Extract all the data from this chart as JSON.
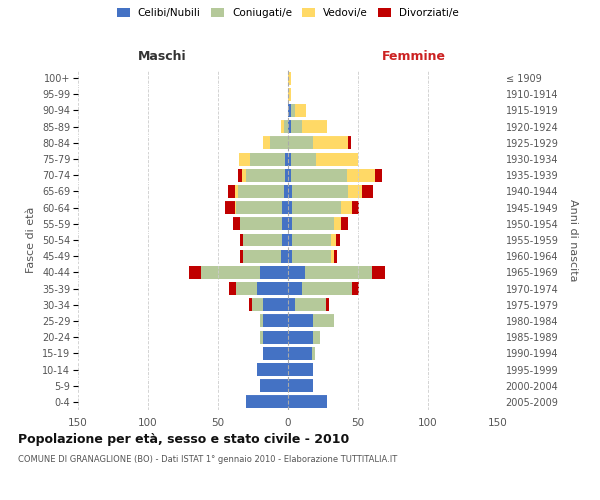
{
  "age_groups": [
    "0-4",
    "5-9",
    "10-14",
    "15-19",
    "20-24",
    "25-29",
    "30-34",
    "35-39",
    "40-44",
    "45-49",
    "50-54",
    "55-59",
    "60-64",
    "65-69",
    "70-74",
    "75-79",
    "80-84",
    "85-89",
    "90-94",
    "95-99",
    "100+"
  ],
  "birth_years": [
    "2005-2009",
    "2000-2004",
    "1995-1999",
    "1990-1994",
    "1985-1989",
    "1980-1984",
    "1975-1979",
    "1970-1974",
    "1965-1969",
    "1960-1964",
    "1955-1959",
    "1950-1954",
    "1945-1949",
    "1940-1944",
    "1935-1939",
    "1930-1934",
    "1925-1929",
    "1920-1924",
    "1915-1919",
    "1910-1914",
    "≤ 1909"
  ],
  "male_celibe": [
    30,
    20,
    22,
    18,
    18,
    18,
    18,
    22,
    20,
    5,
    4,
    4,
    4,
    3,
    2,
    2,
    0,
    0,
    0,
    0,
    0
  ],
  "male_coniugato": [
    0,
    0,
    0,
    0,
    2,
    2,
    8,
    15,
    42,
    27,
    28,
    30,
    33,
    33,
    28,
    25,
    13,
    3,
    0,
    0,
    0
  ],
  "male_vedovo": [
    0,
    0,
    0,
    0,
    0,
    0,
    0,
    0,
    0,
    0,
    0,
    0,
    1,
    2,
    3,
    8,
    5,
    2,
    0,
    0,
    0
  ],
  "male_divorziato": [
    0,
    0,
    0,
    0,
    0,
    0,
    2,
    5,
    9,
    2,
    2,
    5,
    7,
    5,
    3,
    0,
    0,
    0,
    0,
    0,
    0
  ],
  "female_nubile": [
    28,
    18,
    18,
    17,
    18,
    18,
    5,
    10,
    12,
    3,
    3,
    3,
    3,
    3,
    2,
    2,
    0,
    2,
    2,
    0,
    0
  ],
  "female_coniugata": [
    0,
    0,
    0,
    2,
    5,
    15,
    22,
    36,
    48,
    28,
    28,
    30,
    35,
    40,
    40,
    18,
    18,
    8,
    3,
    0,
    0
  ],
  "female_vedova": [
    0,
    0,
    0,
    0,
    0,
    0,
    0,
    0,
    0,
    2,
    3,
    5,
    8,
    10,
    20,
    30,
    25,
    18,
    8,
    2,
    2
  ],
  "female_divorziata": [
    0,
    0,
    0,
    0,
    0,
    0,
    2,
    5,
    9,
    2,
    3,
    5,
    5,
    8,
    5,
    0,
    2,
    0,
    0,
    0,
    0
  ],
  "colors": {
    "celibe": "#4472c4",
    "coniugato": "#b5c99a",
    "vedovo": "#ffd966",
    "divorziato": "#c00000"
  },
  "legend_labels": [
    "Celibi/Nubili",
    "Coniugati/e",
    "Vedovi/e",
    "Divorziati/e"
  ],
  "title": "Popolazione per età, sesso e stato civile - 2010",
  "subtitle": "COMUNE DI GRANAGLIONE (BO) - Dati ISTAT 1° gennaio 2010 - Elaborazione TUTTITALIA.IT",
  "label_maschi": "Maschi",
  "label_femmine": "Femmine",
  "label_fasce": "Fasce di età",
  "label_anni": "Anni di nascita",
  "xlim": 150,
  "bg_color": "#ffffff"
}
